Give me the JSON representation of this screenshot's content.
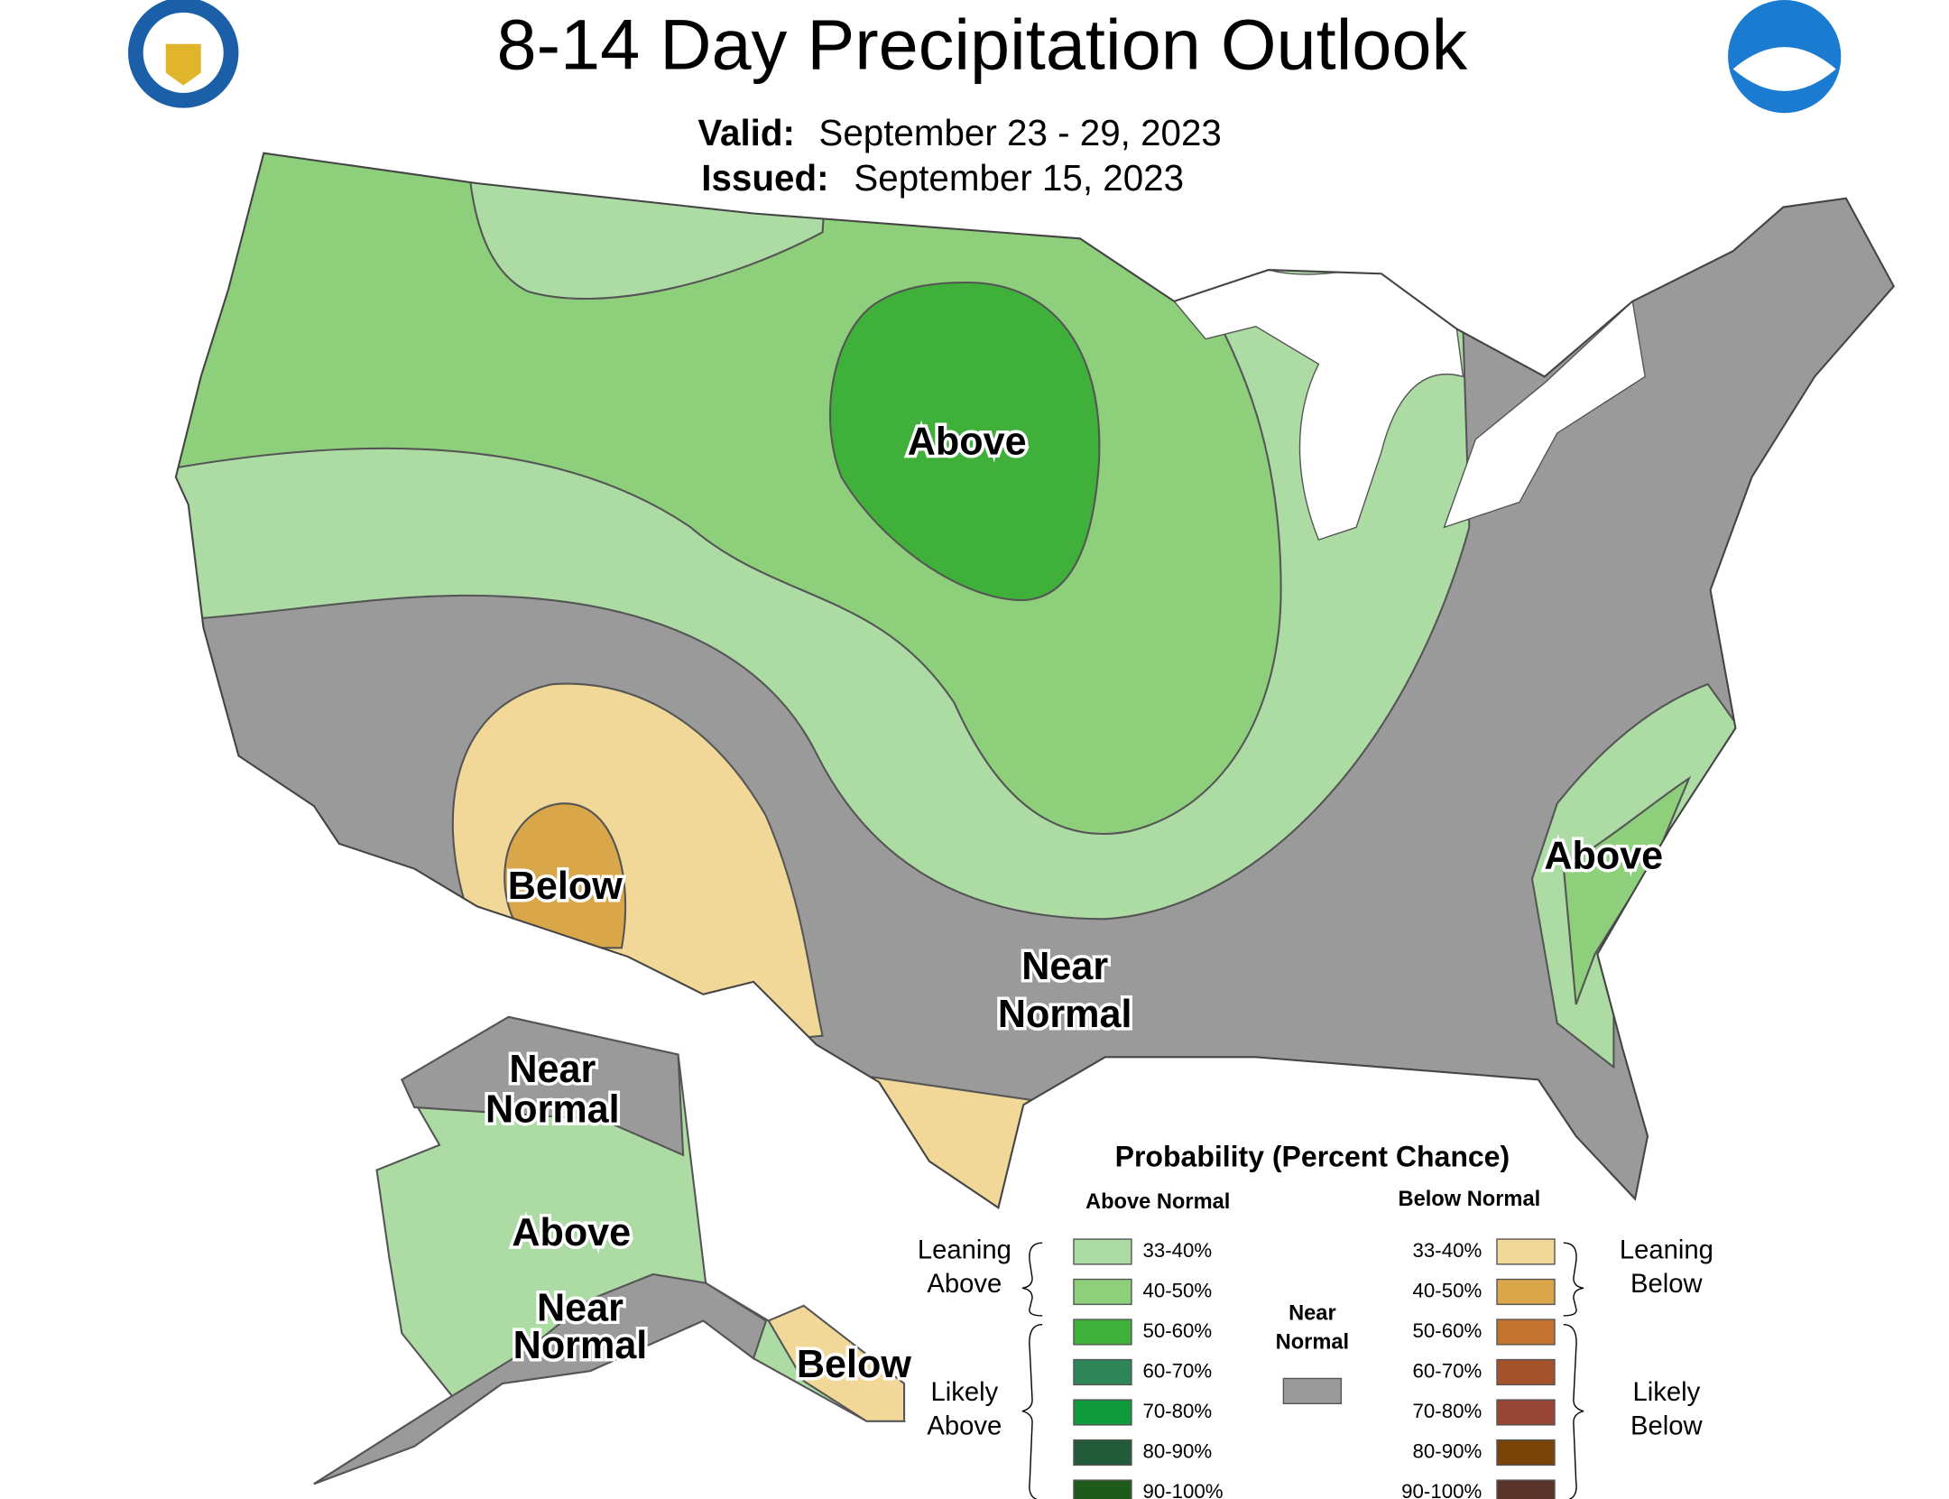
{
  "header": {
    "title": "8-14 Day Precipitation Outlook",
    "valid_label": "Valid:",
    "valid_dates": "September 23 - 29, 2023",
    "issued_label": "Issued:",
    "issued_date": "September 15, 2023"
  },
  "map": {
    "labels": [
      {
        "lines": [
          "Above"
        ]
      },
      {
        "lines": [
          "Below"
        ]
      },
      {
        "lines": [
          "Near",
          "Normal"
        ]
      },
      {
        "lines": [
          "Above"
        ]
      },
      {
        "lines": [
          "Near",
          "Normal"
        ]
      },
      {
        "lines": [
          "Above"
        ]
      },
      {
        "lines": [
          "Near",
          "Normal"
        ]
      },
      {
        "lines": [
          "Below"
        ]
      }
    ]
  },
  "legend": {
    "title": "Probability (Percent Chance)",
    "above": {
      "heading": "Above Normal",
      "entries": [
        {
          "label": "33-40%",
          "color": "#acdca4"
        },
        {
          "label": "40-50%",
          "color": "#8ecf7c"
        },
        {
          "label": "50-60%",
          "color": "#3fb03a"
        },
        {
          "label": "60-70%",
          "color": "#2e8658"
        },
        {
          "label": "70-80%",
          "color": "#109a3e"
        },
        {
          "label": "80-90%",
          "color": "#235a3a"
        },
        {
          "label": "90-100%",
          "color": "#1e5a1a"
        }
      ]
    },
    "below": {
      "heading": "Below Normal",
      "entries": [
        {
          "label": "33-40%",
          "color": "#f1d898"
        },
        {
          "label": "40-50%",
          "color": "#d9a74a"
        },
        {
          "label": "50-60%",
          "color": "#c4742e"
        },
        {
          "label": "60-70%",
          "color": "#a4522c"
        },
        {
          "label": "70-80%",
          "color": "#974636"
        },
        {
          "label": "80-90%",
          "color": "#7a4307"
        },
        {
          "label": "90-100%",
          "color": "#5a3329"
        }
      ]
    },
    "near_normal": {
      "lines": [
        "Near",
        "Normal"
      ],
      "color": "#9a9a9a"
    },
    "groups": {
      "leaning_above": [
        "Leaning",
        "Above"
      ],
      "likely_above": [
        "Likely",
        "Above"
      ],
      "leaning_below": [
        "Leaning",
        "Below"
      ],
      "likely_below": [
        "Likely",
        "Below"
      ]
    }
  }
}
